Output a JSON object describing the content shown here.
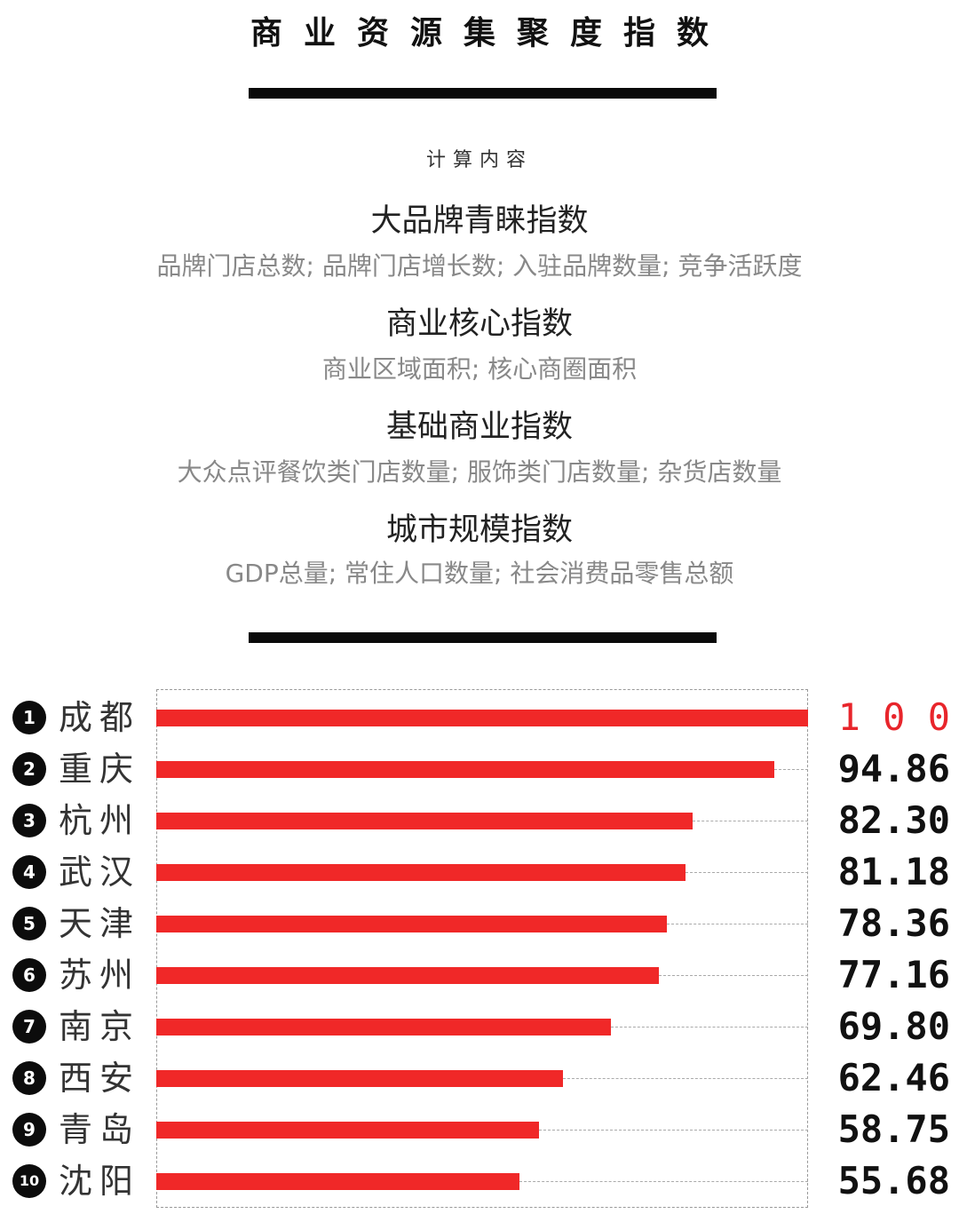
{
  "header": {
    "title": "商业资源集聚度指数",
    "calc_label": "计算内容"
  },
  "sections": [
    {
      "heading": "大品牌青睐指数",
      "detail": "品牌门店总数; 品牌门店增长数; 入驻品牌数量; 竞争活跃度"
    },
    {
      "heading": "商业核心指数",
      "detail": "商业区域面积; 核心商圈面积"
    },
    {
      "heading": "基础商业指数",
      "detail": "大众点评餐饮类门店数量; 服饰类门店数量; 杂货店数量"
    },
    {
      "heading": "城市规模指数",
      "detail": "GDP总量; 常住人口数量; 社会消费品零售总额"
    }
  ],
  "chart_data": {
    "type": "bar",
    "orientation": "horizontal",
    "categories": [
      "成都",
      "重庆",
      "杭州",
      "武汉",
      "天津",
      "苏州",
      "南京",
      "西安",
      "青岛",
      "沈阳"
    ],
    "ranks": [
      "1",
      "2",
      "3",
      "4",
      "5",
      "6",
      "7",
      "8",
      "9",
      "10"
    ],
    "values": [
      100,
      94.86,
      82.3,
      81.18,
      78.36,
      77.16,
      69.8,
      62.46,
      58.75,
      55.68
    ],
    "labels": [
      "1 0 0",
      "94.86",
      "82.30",
      "81.18",
      "78.36",
      "77.16",
      "69.80",
      "62.46",
      "58.75",
      "55.68"
    ],
    "xlim": [
      0,
      100
    ],
    "bar_color": "#f02828",
    "top_label_color": "#e8252b"
  }
}
